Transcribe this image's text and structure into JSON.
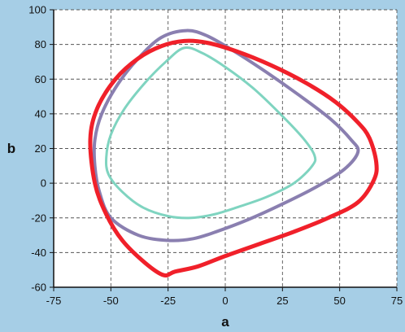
{
  "chart_data": {
    "type": "line",
    "title": "",
    "xlabel": "a",
    "ylabel": "b",
    "xlim": [
      -75,
      75
    ],
    "ylim": [
      -60,
      100
    ],
    "xticks": [
      -75,
      -50,
      -25,
      0,
      25,
      50,
      75
    ],
    "yticks": [
      -60,
      -40,
      -20,
      0,
      20,
      40,
      60,
      80,
      100
    ],
    "grid": "dashed",
    "background": "#a6cee6",
    "plot_background": "#ffffff",
    "series": [
      {
        "color": "#8a7fb0",
        "closed": true,
        "x": [
          -17,
          -8,
          4,
          18,
          32,
          46,
          55,
          58,
          52,
          40,
          25,
          10,
          -4,
          -14,
          -25,
          -38,
          -50,
          -55,
          -57,
          -57,
          -54,
          -47,
          -38,
          -28,
          -17
        ],
        "y": [
          88,
          85,
          76,
          64,
          51,
          37,
          25,
          18,
          8,
          -2,
          -12,
          -21,
          -28,
          -32,
          -33,
          -30,
          -20,
          -5,
          10,
          25,
          40,
          57,
          72,
          84,
          88
        ]
      },
      {
        "color": "#7fd4c0",
        "closed": true,
        "x": [
          -18,
          -10,
          0,
          12,
          24,
          34,
          39,
          38,
          30,
          18,
          5,
          -5,
          -15,
          -25,
          -36,
          -45,
          -51,
          -52,
          -50,
          -44,
          -35,
          -26,
          -18
        ],
        "y": [
          78,
          75,
          67,
          55,
          40,
          26,
          16,
          10,
          0,
          -8,
          -14,
          -18,
          -20,
          -19,
          -14,
          -5,
          5,
          15,
          28,
          43,
          58,
          70,
          78
        ]
      },
      {
        "color": "#f0202a",
        "closed": true,
        "x": [
          -18,
          -8,
          5,
          20,
          35,
          48,
          58,
          63,
          66,
          65,
          58,
          45,
          30,
          15,
          0,
          -12,
          -22,
          -27,
          -35,
          -45,
          -52,
          -57,
          -59,
          -56,
          -48,
          -38,
          -28,
          -18
        ],
        "y": [
          82,
          81,
          76,
          68,
          58,
          47,
          35,
          26,
          12,
          2,
          -11,
          -20,
          -28,
          -35,
          -42,
          -48,
          -51,
          -53,
          -46,
          -33,
          -18,
          0,
          25,
          43,
          60,
          72,
          79,
          82
        ]
      }
    ]
  }
}
